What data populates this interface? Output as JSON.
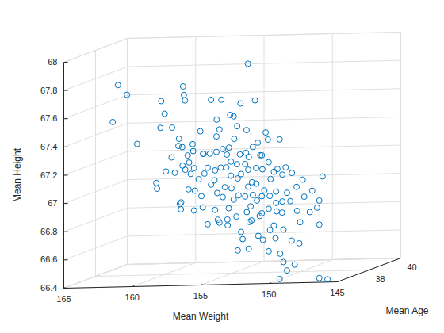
{
  "chart_data": {
    "type": "scatter3d",
    "xlabel": "Mean Weight",
    "ylabel": "Mean Age",
    "zlabel": "Mean Height",
    "xlim": [
      165,
      145
    ],
    "ylim": [
      36,
      40
    ],
    "zlim": [
      66.4,
      68
    ],
    "xticks": [
      165,
      160,
      155,
      150,
      145
    ],
    "yticks": [
      38,
      40
    ],
    "zticks": [
      66.4,
      66.6,
      66.8,
      67,
      67.2,
      67.4,
      67.6,
      67.8,
      68
    ],
    "grid": true,
    "color": "#0072BD",
    "marker": "circle",
    "x": [
      162.2,
      162.7,
      164.9,
      160.8,
      160.2,
      161.1,
      159.1,
      158.6,
      159.7,
      157.3,
      159.4,
      160.1,
      157.5,
      157.9,
      160.6,
      158.7,
      159.2,
      159.8,
      157.0,
      157.8,
      159.2,
      156.3,
      157.1,
      158.5,
      155.4,
      155.8,
      157.3,
      155.0,
      155.4,
      156.4,
      154.0,
      154.9,
      155.8,
      153.7,
      154.4,
      154.5,
      152.7,
      153.5,
      154.3,
      151.4,
      152.4,
      152.7,
      151.8,
      154.0,
      155.6,
      153.5,
      155.1,
      157.0,
      155.1,
      156.8,
      158.2,
      155.4,
      156.1,
      156.7,
      153.9,
      154.6,
      155.0,
      152.1,
      152.8,
      153.5,
      150.8,
      151.7,
      152.5,
      153.2,
      155.1,
      158.9,
      156.0,
      157.8,
      160.0,
      157.6,
      158.2,
      159.9,
      155.1,
      156.8,
      157.1,
      154.2,
      154.7,
      155.1,
      152.5,
      153.2,
      154.0,
      151.1,
      151.8,
      152.5,
      149.6,
      150.3,
      150.9,
      148.0,
      148.4,
      149.8,
      148.7,
      151.0,
      151.2,
      149.1,
      148.8,
      150.5,
      150.8,
      153.0,
      154.9,
      153.2,
      153.1,
      153.4,
      151.6,
      151.5,
      153.5,
      150.1,
      151.0,
      153.0,
      149.5,
      153.8,
      154.0,
      150.2,
      150.1,
      149.8,
      146.9,
      146.3,
      149.8,
      148.7,
      156.1,
      155.7,
      155.0,
      152.4,
      156.3,
      159.6,
      159.4,
      160.5,
      158.3,
      156.7,
      158.9,
      157.1,
      152.8,
      151.1,
      151.8,
      154.1,
      154.9,
      155.7,
      152.9,
      153.5,
      154.4,
      151.5,
      152.2,
      156.6,
      152.9,
      153.8,
      154.0,
      155.0,
      155.7,
      157.8,
      157.1,
      154.6,
      156.5,
      154.9,
      151.8,
      153.5,
      150.6,
      153.6,
      155.4,
      150.1
    ],
    "y": [
      37,
      38,
      39,
      37,
      38,
      39,
      37,
      38,
      39,
      37,
      38,
      39,
      37,
      38,
      39,
      37,
      38,
      39,
      37,
      38,
      39,
      37,
      38,
      39,
      37,
      38,
      39,
      37,
      38,
      39,
      37,
      38,
      39,
      37,
      38,
      39,
      37,
      38,
      39,
      37,
      38,
      39,
      37,
      38,
      39,
      37,
      38,
      39,
      37,
      38,
      39,
      37,
      38,
      39,
      37,
      38,
      39,
      37,
      38,
      39,
      37,
      38,
      39,
      37,
      38,
      39,
      37,
      38,
      39,
      37,
      38,
      39,
      37,
      38,
      39,
      37,
      38,
      39,
      37,
      38,
      39,
      37,
      38,
      39,
      37,
      38,
      39,
      37,
      38,
      39,
      37,
      38,
      39,
      37,
      38,
      39,
      37,
      38,
      39,
      37,
      38,
      39,
      37,
      38,
      39,
      37,
      38,
      39,
      37,
      38,
      39,
      37,
      38,
      39,
      36.5,
      36.5,
      36.5,
      36.5,
      37,
      38,
      39,
      37,
      38,
      39,
      37,
      38,
      39,
      37,
      38,
      39,
      37,
      38,
      39,
      37,
      38,
      39,
      37,
      38,
      39,
      37,
      38,
      39,
      37,
      38,
      39,
      37,
      38,
      39,
      37,
      38,
      39,
      37,
      38,
      39,
      37,
      38,
      39,
      37
    ],
    "z": [
      67.79,
      67.68,
      67.45,
      67.37,
      67.63,
      67.5,
      67.48,
      67.73,
      67.63,
      67.67,
      67.44,
      67.27,
      67.34,
      67.32,
      67.19,
      67.17,
      67.12,
      67.13,
      67.23,
      67.15,
      67.07,
      67.11,
      67.25,
      67.37,
      67.67,
      67.63,
      67.45,
      67.41,
      67.24,
      67.25,
      67.56,
      67.51,
      67.4,
      67.39,
      67.6,
      67.58,
      67.92,
      67.29,
      67.28,
      67.43,
      67.34,
      67.3,
      67.27,
      67.25,
      67.2,
      67.21,
      67.19,
      67.11,
      67.17,
      67.15,
      67.07,
      67.07,
      66.97,
      66.97,
      67.04,
      67.07,
      67.09,
      67.18,
      67.13,
      67.14,
      67.15,
      67.13,
      67.05,
      67.14,
      67.09,
      66.95,
      66.91,
      66.85,
      66.86,
      66.9,
      67.0,
      66.87,
      66.89,
      66.75,
      66.72,
      66.82,
      66.8,
      66.79,
      66.91,
      66.91,
      66.9,
      66.98,
      66.89,
      66.86,
      66.94,
      67.0,
      66.89,
      67.01,
      67.07,
      66.86,
      67.09,
      66.96,
      66.71,
      66.87,
      66.85,
      66.78,
      66.77,
      66.8,
      66.72,
      66.73,
      66.66,
      66.66,
      66.67,
      66.53,
      66.51,
      66.51,
      66.41,
      66.6,
      66.66,
      66.57,
      66.78,
      66.86,
      66.6,
      66.69,
      66.41,
      66.4,
      66.41,
      66.51,
      66.99,
      66.94,
      66.97,
      67.08,
      67.06,
      67.1,
      67.09,
      67.01,
      67.21,
      67.31,
      67.36,
      67.38,
      67.45,
      67.14,
      67.06,
      66.9,
      66.92,
      66.91,
      66.98,
      66.95,
      66.99,
      67.02,
      67.06,
      67.11,
      67.21,
      67.22,
      67.19,
      67.3,
      67.28,
      67.21,
      67.28,
      66.56,
      66.7,
      66.82,
      66.97,
      66.81,
      66.87,
      66.77,
      66.6,
      66.74
    ]
  }
}
